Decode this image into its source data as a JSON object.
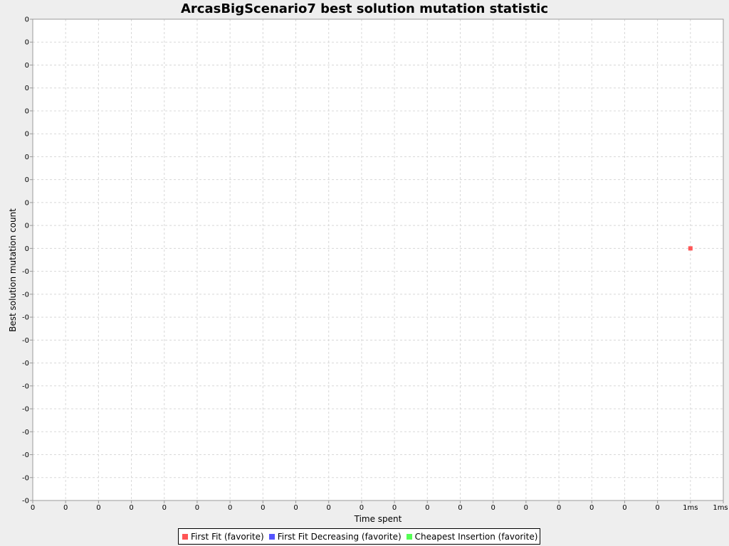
{
  "chart_data": {
    "type": "scatter",
    "title": "ArcasBigScenario7 best solution mutation statistic",
    "xlabel": "Time spent",
    "ylabel": "Best solution mutation count",
    "x_tick_labels": [
      "0",
      "0",
      "0",
      "0",
      "0",
      "0",
      "0",
      "0",
      "0",
      "0",
      "0",
      "0",
      "0",
      "0",
      "0",
      "0",
      "0",
      "0",
      "0",
      "0",
      "1ms",
      "1ms"
    ],
    "y_tick_labels": [
      "0",
      "0",
      "0",
      "0",
      "0",
      "0",
      "0",
      "0",
      "0",
      "0",
      "0",
      "-0",
      "-0",
      "-0",
      "-0",
      "-0",
      "-0",
      "-0",
      "-0",
      "-0",
      "-0",
      "-0"
    ],
    "grid": true,
    "legend_position": "bottom",
    "series": [
      {
        "name": "First Fit (favorite)",
        "color": "#ff5555",
        "points": [
          {
            "x": 1,
            "y": 0
          }
        ]
      },
      {
        "name": "First Fit Decreasing (favorite)",
        "color": "#5555ff",
        "points": []
      },
      {
        "name": "Cheapest Insertion (favorite)",
        "color": "#55ff55",
        "points": []
      }
    ]
  }
}
